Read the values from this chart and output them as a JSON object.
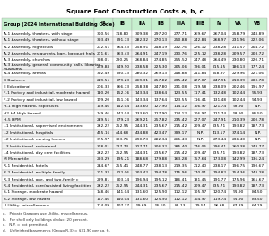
{
  "title": "Square Foot Construction Costs",
  "title_superscript": " a, b, c",
  "header_bg": "#c6efce",
  "col_header": [
    "Group (2024 International Building Code)",
    "IA",
    "IB",
    "IIA",
    "IIB",
    "IIIA",
    "IIIB",
    "IV",
    "VA",
    "VB"
  ],
  "rows": [
    [
      "A-1 Assembly, theaters, with stage",
      "330.56",
      "318.80",
      "309.38",
      "297.20",
      "277.71",
      "269.67",
      "267.04",
      "258.79",
      "248.89"
    ],
    [
      "A-1 Assembly, theaters, without stage",
      "303.49",
      "291.73",
      "282.32",
      "270.13",
      "250.88",
      "242.84",
      "268.97",
      "231.96",
      "222.06"
    ],
    [
      "A-2 Assembly, nightclubs",
      "272.51",
      "264.43",
      "258.91",
      "248.19",
      "232.76",
      "226.12",
      "238.28",
      "211.57",
      "204.72"
    ],
    [
      "A-2 Assembly, restaurants, bars, banquet halls",
      "271.61",
      "263.43",
      "264.91",
      "247.19",
      "230.76",
      "225.12",
      "238.28",
      "209.57",
      "203.72"
    ],
    [
      "A-3 Assembly, churches",
      "308.01",
      "290.25",
      "268.84",
      "274.85",
      "255.52",
      "247.48",
      "264.49",
      "230.80",
      "220.71"
    ],
    [
      "A-3 Assembly, general, community halls, libraries,\nmuseums",
      "259.88",
      "249.90",
      "238.58",
      "225.30",
      "205.06",
      "196.01",
      "215.15",
      "186.13",
      "177.24"
    ],
    [
      "A-4 Assembly, arenas",
      "302.49",
      "290.73",
      "280.32",
      "269.13",
      "248.88",
      "241.84",
      "258.97",
      "229.96",
      "221.06"
    ],
    [
      "B Business",
      "289.51",
      "279.23",
      "269.31",
      "257.82",
      "235.42",
      "227.07",
      "247.91",
      "210.39",
      "200.78"
    ],
    [
      "E Educational",
      "276.33",
      "266.73",
      "258.38",
      "247.80",
      "231.08",
      "219.58",
      "238.09",
      "202.46",
      "195.97"
    ],
    [
      "F-1 Factory and industrial, moderate hazard",
      "180.20",
      "152.76",
      "143.34",
      "138.64",
      "123.55",
      "117.41",
      "132.48",
      "102.44",
      "95.93"
    ],
    [
      "F-2 Factory and industrial, low hazard",
      "199.20",
      "151.76",
      "143.34",
      "137.64",
      "123.55",
      "116.41",
      "131.48",
      "102.44",
      "94.93"
    ],
    [
      "H-1 High Hazard, explosives",
      "149.46",
      "142.04",
      "133.60",
      "127.90",
      "114.12",
      "106.97",
      "121.74",
      "93.90",
      "N.P."
    ],
    [
      "H2-H4 High Hazard",
      "149.46",
      "142.04",
      "133.60",
      "127.90",
      "114.12",
      "106.97",
      "121.74",
      "93.90",
      "85.50"
    ],
    [
      "H-5 HPM",
      "289.51",
      "279.23",
      "269.21",
      "257.82",
      "235.42",
      "227.07",
      "247.91",
      "210.39",
      "200.78"
    ],
    [
      "I-1 Institutional, supervised environment",
      "262.22",
      "252.95",
      "244.31",
      "235.67",
      "215.42",
      "209.47",
      "235.71",
      "193.82",
      "187.73"
    ],
    [
      "I-2 Institutional, hospitals",
      "455.16",
      "444.68",
      "434.88",
      "423.47",
      "399.17",
      "N.P.",
      "413.57",
      "374.14",
      "N.P."
    ],
    [
      "I-2 Institutional, nursing homes",
      "315.97",
      "303.76",
      "290.73",
      "282.34",
      "261.43",
      "N.P.",
      "273.44",
      "236.40",
      "N.P."
    ],
    [
      "I-3 Institutional, restrained",
      "338.01",
      "327.73",
      "317.71",
      "306.32",
      "285.40",
      "276.05",
      "296.41",
      "260.38",
      "248.77"
    ],
    [
      "I-4 Institutional, day care facilities",
      "262.22",
      "252.95",
      "244.31",
      "235.67",
      "215.42",
      "209.47",
      "235.71",
      "193.82",
      "187.73"
    ],
    [
      "M Mercantile",
      "203.29",
      "195.21",
      "188.68",
      "179.88",
      "163.28",
      "157.64",
      "173.08",
      "142.99",
      "136.24"
    ],
    [
      "R-1 Residential, hotels",
      "284.67",
      "255.41",
      "248.77",
      "238.13",
      "219.35",
      "212.40",
      "238.17",
      "196.75",
      "190.67"
    ],
    [
      "R-2 Residential, multiple family",
      "221.32",
      "212.06",
      "203.42",
      "194.78",
      "175.96",
      "170.01",
      "194.82",
      "154.36",
      "148.28"
    ],
    [
      "R-3 Residential, one- and two-family c",
      "209.81",
      "203.74",
      "196.94",
      "195.12",
      "186.41",
      "181.45",
      "191.77",
      "175.96",
      "165.67"
    ],
    [
      "R-4 Residential, care/assisted living facilities",
      "262.22",
      "252.95",
      "244.31",
      "235.67",
      "215.42",
      "209.47",
      "235.71",
      "193.82",
      "187.73"
    ],
    [
      "S-1 Storage, moderate hazard",
      "148.46",
      "141.04",
      "131.60",
      "125.90",
      "112.12",
      "105.97",
      "120.74",
      "91.90",
      "84.50"
    ],
    [
      "S-2 Storage, low hazard",
      "147.46",
      "140.04",
      "131.60",
      "125.90",
      "112.12",
      "104.97",
      "119.74",
      "91.90",
      "83.50"
    ],
    [
      "U Utility, miscellaneous",
      "114.09",
      "107.37",
      "99.69",
      "95.60",
      "85.13",
      "79.54",
      "96.68",
      "67.39",
      "64.19"
    ]
  ],
  "footnotes": [
    "a.   Private Garages use Utility, miscellaneous.",
    "b.   For shell only buildings deduct 20 percent.",
    "c.   N.P. = not permitted.",
    "d.   Unfinished basements (Group R-3) = $31.90 per sq. ft."
  ],
  "row_colors": [
    "#ffffff",
    "#f0f0f0"
  ],
  "title_fontsize": 5.0,
  "header_fontsize": 3.8,
  "cell_fontsize": 3.2,
  "footnote_fontsize": 3.0
}
